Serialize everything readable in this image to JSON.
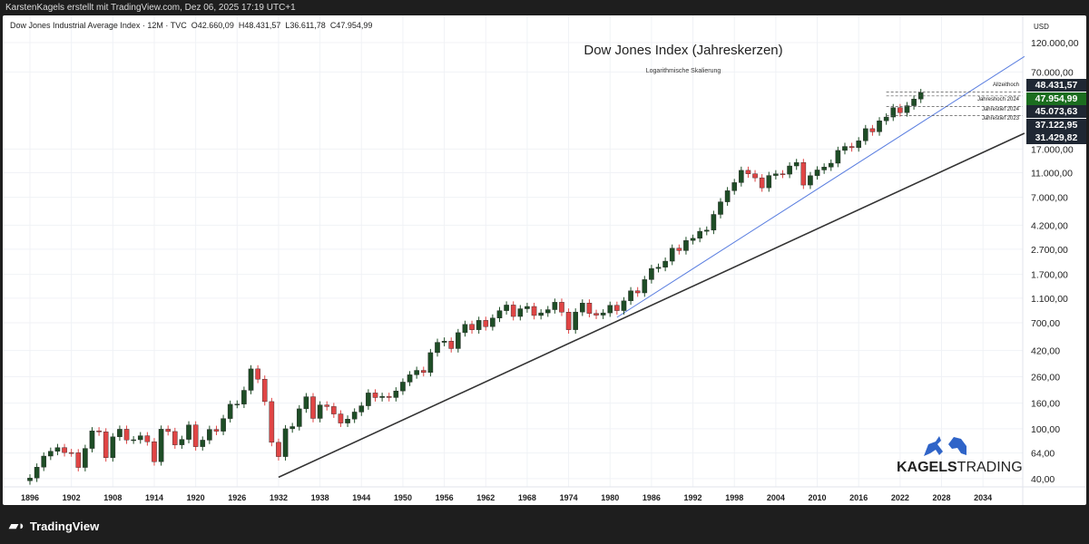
{
  "topbar": {
    "text": "KarstenKagels erstellt mit TradingView.com, Dez 06, 2025 17:19 UTC+1"
  },
  "legend": {
    "symbol": "Dow Jones Industrial Average Index · 12M · TVC",
    "open": "O42.660,09",
    "high": "H48.431,57",
    "low": "L36.611,78",
    "close": "C47.954,99"
  },
  "footer": {
    "brand": "TradingView"
  },
  "logo": {
    "text_bold": "KAGELS",
    "text_light": "TRADING"
  },
  "price_labels": [
    {
      "text": "48.431,57",
      "color": "#1f2733"
    },
    {
      "text": "47.954,99",
      "color": "#1b6d1f"
    },
    {
      "text": "45.073,63",
      "color": "#1f2733"
    },
    {
      "text": "37.122,95",
      "color": "#1f2733"
    },
    {
      "text": "31.429,82",
      "color": "#1f2733"
    }
  ],
  "chart_data": {
    "type": "candlestick",
    "title": "Dow Jones Index (Jahreskerzen)",
    "subtitle": "Logarithmische Skalierung",
    "currency": "USD",
    "yscale": "log",
    "ylim": [
      36,
      140000
    ],
    "xlim": [
      1894,
      2040
    ],
    "grid": true,
    "colors": {
      "up": "#1e4d26",
      "down": "#e04545",
      "trend_black": "#333333",
      "trend_blue": "#5b7fe0"
    },
    "x_ticks": [
      "1896",
      "1902",
      "1908",
      "1914",
      "1920",
      "1926",
      "1932",
      "1938",
      "1944",
      "1950",
      "1956",
      "1962",
      "1968",
      "1974",
      "1980",
      "1986",
      "1992",
      "1998",
      "2004",
      "2010",
      "2016",
      "2022",
      "2028",
      "2034"
    ],
    "y_ticks": [
      "120.000,00",
      "70.000,00",
      "17.000,00",
      "11.000,00",
      "7.000,00",
      "4.200,00",
      "2.700,00",
      "1.700,00",
      "1.100,00",
      "700,00",
      "420,00",
      "260,00",
      "160,00",
      "100,00",
      "64,00",
      "40,00"
    ],
    "y_tick_values": [
      120000,
      70000,
      17000,
      11000,
      7000,
      4200,
      2700,
      1700,
      1100,
      700,
      420,
      260,
      160,
      100,
      64,
      40
    ],
    "start_year": 1896,
    "closes": [
      40.45,
      49.41,
      60.52,
      66.08,
      70.71,
      64.56,
      64.29,
      49.11,
      69.61,
      96.2,
      94.35,
      58.75,
      86.15,
      99.05,
      81.36,
      81.68,
      87.87,
      78.78,
      54.58,
      99.15,
      95,
      74.38,
      82.2,
      107.23,
      71.95,
      81.1,
      98.73,
      95.52,
      120.51,
      156.66,
      157.2,
      202.4,
      300,
      248.48,
      164.58,
      77.9,
      59.93,
      99.9,
      104.04,
      144.13,
      179.9,
      120.85,
      154.76,
      150.24,
      131.13,
      110.96,
      119.4,
      135.89,
      152.32,
      192.91,
      177.2,
      181.16,
      177.3,
      200.13,
      235.41,
      269.23,
      291.9,
      280.9,
      404.39,
      488.4,
      499.47,
      435.69,
      583.65,
      679.36,
      615.89,
      731.14,
      652.1,
      762.95,
      874.13,
      969.26,
      785.69,
      905.11,
      943.75,
      800.36,
      838.92,
      890.2,
      1020.02,
      850.86,
      616.24,
      852.41,
      1004.65,
      831.17,
      805.01,
      838.74,
      963.99,
      875,
      1046.54,
      1258.64,
      1211.57,
      1546.67,
      1895.95,
      1938.83,
      2168.57,
      2753.2,
      2633.66,
      3168.83,
      3301.11,
      3754.09,
      3834.44,
      5117.12,
      6448.27,
      7908.25,
      9181.43,
      11497.12,
      10786.85,
      10021.5,
      8341.63,
      10453.92,
      10783.01,
      10717.5,
      12463.15,
      13264.82,
      8776.39,
      10428.05,
      11577.51,
      12217.56,
      13104.14,
      16576.66,
      17823.07,
      17425.03,
      19762.6,
      24719.22,
      23327.46,
      28538.44,
      30606.48,
      36338.3,
      33147.25,
      37689.54,
      42544.22,
      47954.99
    ],
    "trendlines": [
      {
        "color": "black",
        "from": [
          1932,
          41
        ],
        "to": [
          2040,
          22700
        ]
      },
      {
        "color": "blue",
        "from": [
          1981,
          773
        ],
        "to": [
          2040,
          93000
        ]
      }
    ],
    "levels": [
      {
        "label": "Allzeithoch",
        "value": 48431.57
      },
      {
        "label": "Jahreshoch 2024",
        "value": 45073.63
      },
      {
        "label": "Jahrestief 2024",
        "value": 37122.95
      },
      {
        "label": "Jahrestief 2023",
        "value": 31429.82
      }
    ]
  }
}
